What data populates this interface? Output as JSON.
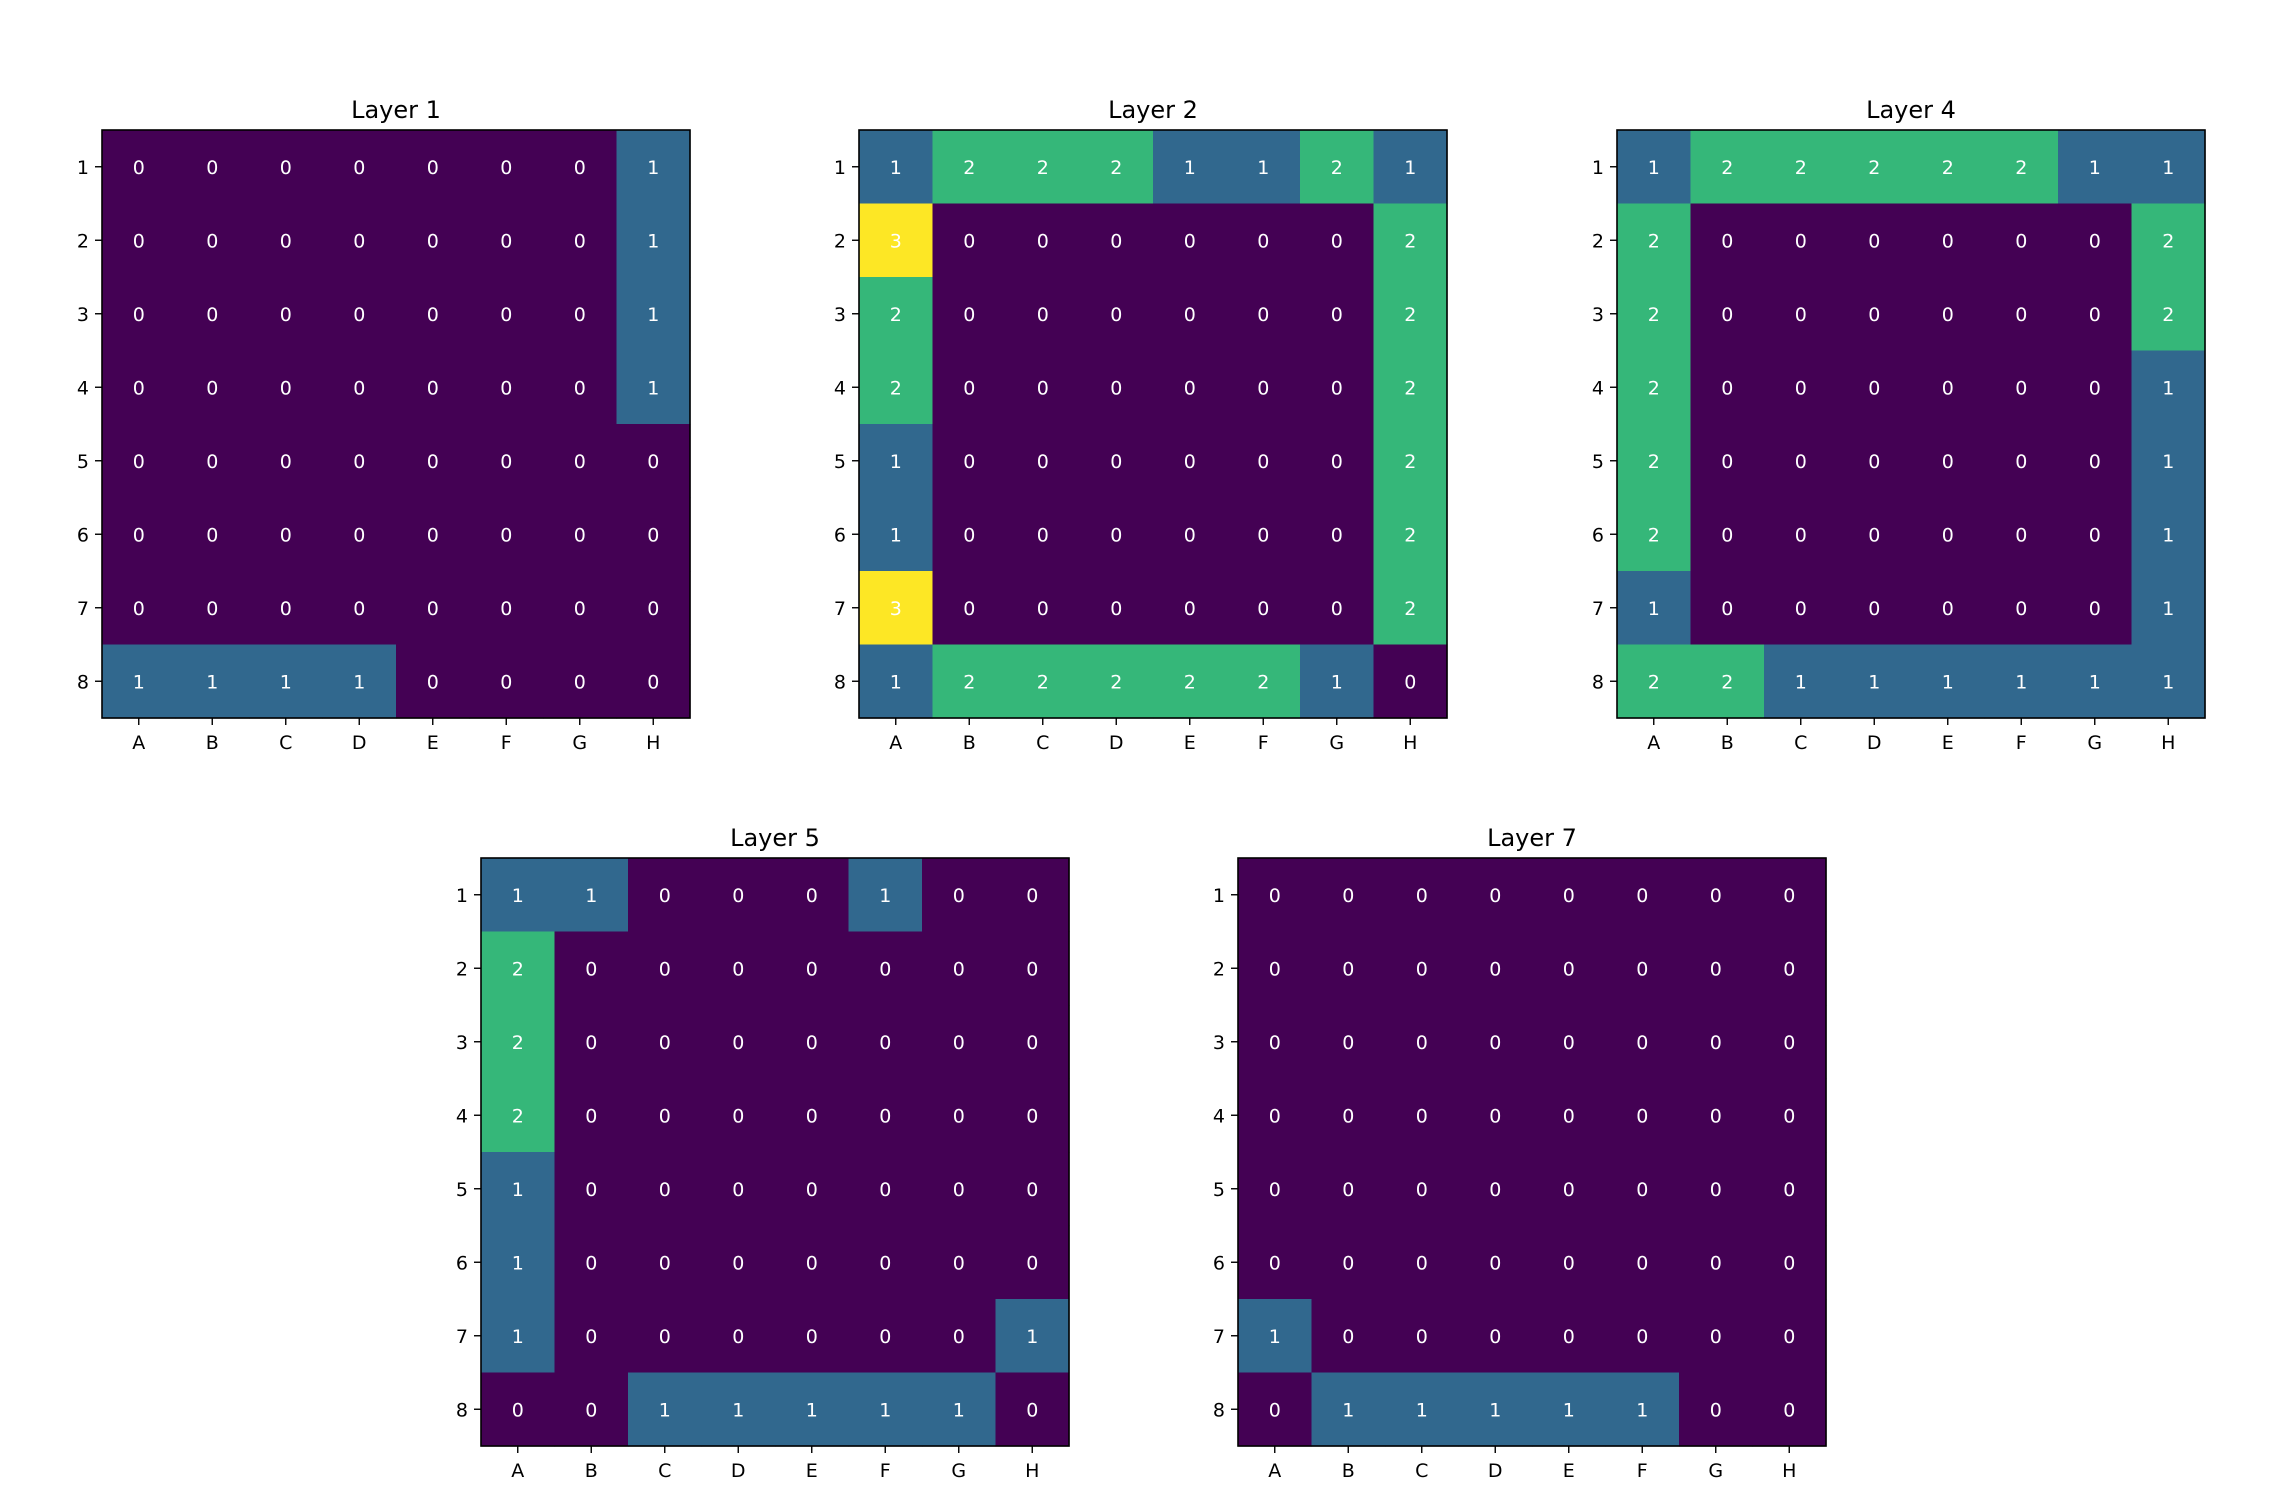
{
  "chart_data": [
    {
      "type": "heatmap",
      "title": "Layer 1",
      "x_categories": [
        "A",
        "B",
        "C",
        "D",
        "E",
        "F",
        "G",
        "H"
      ],
      "y_categories": [
        "1",
        "2",
        "3",
        "4",
        "5",
        "6",
        "7",
        "8"
      ],
      "values": [
        [
          0,
          0,
          0,
          0,
          0,
          0,
          0,
          1
        ],
        [
          0,
          0,
          0,
          0,
          0,
          0,
          0,
          1
        ],
        [
          0,
          0,
          0,
          0,
          0,
          0,
          0,
          1
        ],
        [
          0,
          0,
          0,
          0,
          0,
          0,
          0,
          1
        ],
        [
          0,
          0,
          0,
          0,
          0,
          0,
          0,
          0
        ],
        [
          0,
          0,
          0,
          0,
          0,
          0,
          0,
          0
        ],
        [
          0,
          0,
          0,
          0,
          0,
          0,
          0,
          0
        ],
        [
          1,
          1,
          1,
          1,
          0,
          0,
          0,
          0
        ]
      ],
      "vmin": 0,
      "vmax": 3,
      "colormap": "viridis",
      "cell_labels": true,
      "grid": false,
      "xlabel": "",
      "ylabel": ""
    },
    {
      "type": "heatmap",
      "title": "Layer 2",
      "x_categories": [
        "A",
        "B",
        "C",
        "D",
        "E",
        "F",
        "G",
        "H"
      ],
      "y_categories": [
        "1",
        "2",
        "3",
        "4",
        "5",
        "6",
        "7",
        "8"
      ],
      "values": [
        [
          1,
          2,
          2,
          2,
          1,
          1,
          2,
          1
        ],
        [
          3,
          0,
          0,
          0,
          0,
          0,
          0,
          2
        ],
        [
          2,
          0,
          0,
          0,
          0,
          0,
          0,
          2
        ],
        [
          2,
          0,
          0,
          0,
          0,
          0,
          0,
          2
        ],
        [
          1,
          0,
          0,
          0,
          0,
          0,
          0,
          2
        ],
        [
          1,
          0,
          0,
          0,
          0,
          0,
          0,
          2
        ],
        [
          3,
          0,
          0,
          0,
          0,
          0,
          0,
          2
        ],
        [
          1,
          2,
          2,
          2,
          2,
          2,
          1,
          0
        ]
      ],
      "vmin": 0,
      "vmax": 3,
      "colormap": "viridis",
      "cell_labels": true,
      "grid": false,
      "xlabel": "",
      "ylabel": ""
    },
    {
      "type": "heatmap",
      "title": "Layer 4",
      "x_categories": [
        "A",
        "B",
        "C",
        "D",
        "E",
        "F",
        "G",
        "H"
      ],
      "y_categories": [
        "1",
        "2",
        "3",
        "4",
        "5",
        "6",
        "7",
        "8"
      ],
      "values": [
        [
          1,
          2,
          2,
          2,
          2,
          2,
          1,
          1
        ],
        [
          2,
          0,
          0,
          0,
          0,
          0,
          0,
          2
        ],
        [
          2,
          0,
          0,
          0,
          0,
          0,
          0,
          2
        ],
        [
          2,
          0,
          0,
          0,
          0,
          0,
          0,
          1
        ],
        [
          2,
          0,
          0,
          0,
          0,
          0,
          0,
          1
        ],
        [
          2,
          0,
          0,
          0,
          0,
          0,
          0,
          1
        ],
        [
          1,
          0,
          0,
          0,
          0,
          0,
          0,
          1
        ],
        [
          2,
          2,
          1,
          1,
          1,
          1,
          1,
          1
        ]
      ],
      "vmin": 0,
      "vmax": 3,
      "colormap": "viridis",
      "cell_labels": true,
      "grid": false,
      "xlabel": "",
      "ylabel": ""
    },
    {
      "type": "heatmap",
      "title": "Layer 5",
      "x_categories": [
        "A",
        "B",
        "C",
        "D",
        "E",
        "F",
        "G",
        "H"
      ],
      "y_categories": [
        "1",
        "2",
        "3",
        "4",
        "5",
        "6",
        "7",
        "8"
      ],
      "values": [
        [
          1,
          1,
          0,
          0,
          0,
          1,
          0,
          0
        ],
        [
          2,
          0,
          0,
          0,
          0,
          0,
          0,
          0
        ],
        [
          2,
          0,
          0,
          0,
          0,
          0,
          0,
          0
        ],
        [
          2,
          0,
          0,
          0,
          0,
          0,
          0,
          0
        ],
        [
          1,
          0,
          0,
          0,
          0,
          0,
          0,
          0
        ],
        [
          1,
          0,
          0,
          0,
          0,
          0,
          0,
          0
        ],
        [
          1,
          0,
          0,
          0,
          0,
          0,
          0,
          1
        ],
        [
          0,
          0,
          1,
          1,
          1,
          1,
          1,
          0
        ]
      ],
      "vmin": 0,
      "vmax": 3,
      "colormap": "viridis",
      "cell_labels": true,
      "grid": false,
      "xlabel": "",
      "ylabel": ""
    },
    {
      "type": "heatmap",
      "title": "Layer 7",
      "x_categories": [
        "A",
        "B",
        "C",
        "D",
        "E",
        "F",
        "G",
        "H"
      ],
      "y_categories": [
        "1",
        "2",
        "3",
        "4",
        "5",
        "6",
        "7",
        "8"
      ],
      "values": [
        [
          0,
          0,
          0,
          0,
          0,
          0,
          0,
          0
        ],
        [
          0,
          0,
          0,
          0,
          0,
          0,
          0,
          0
        ],
        [
          0,
          0,
          0,
          0,
          0,
          0,
          0,
          0
        ],
        [
          0,
          0,
          0,
          0,
          0,
          0,
          0,
          0
        ],
        [
          0,
          0,
          0,
          0,
          0,
          0,
          0,
          0
        ],
        [
          0,
          0,
          0,
          0,
          0,
          0,
          0,
          0
        ],
        [
          1,
          0,
          0,
          0,
          0,
          0,
          0,
          0
        ],
        [
          0,
          1,
          1,
          1,
          1,
          1,
          0,
          0
        ]
      ],
      "vmin": 0,
      "vmax": 3,
      "colormap": "viridis",
      "cell_labels": true,
      "grid": false,
      "xlabel": "",
      "ylabel": ""
    }
  ],
  "colors": {
    "0": "#440154",
    "1": "#31688e",
    "2": "#35b779",
    "3": "#fde725",
    "label_text": "#ffffff",
    "axis": "#000000"
  }
}
